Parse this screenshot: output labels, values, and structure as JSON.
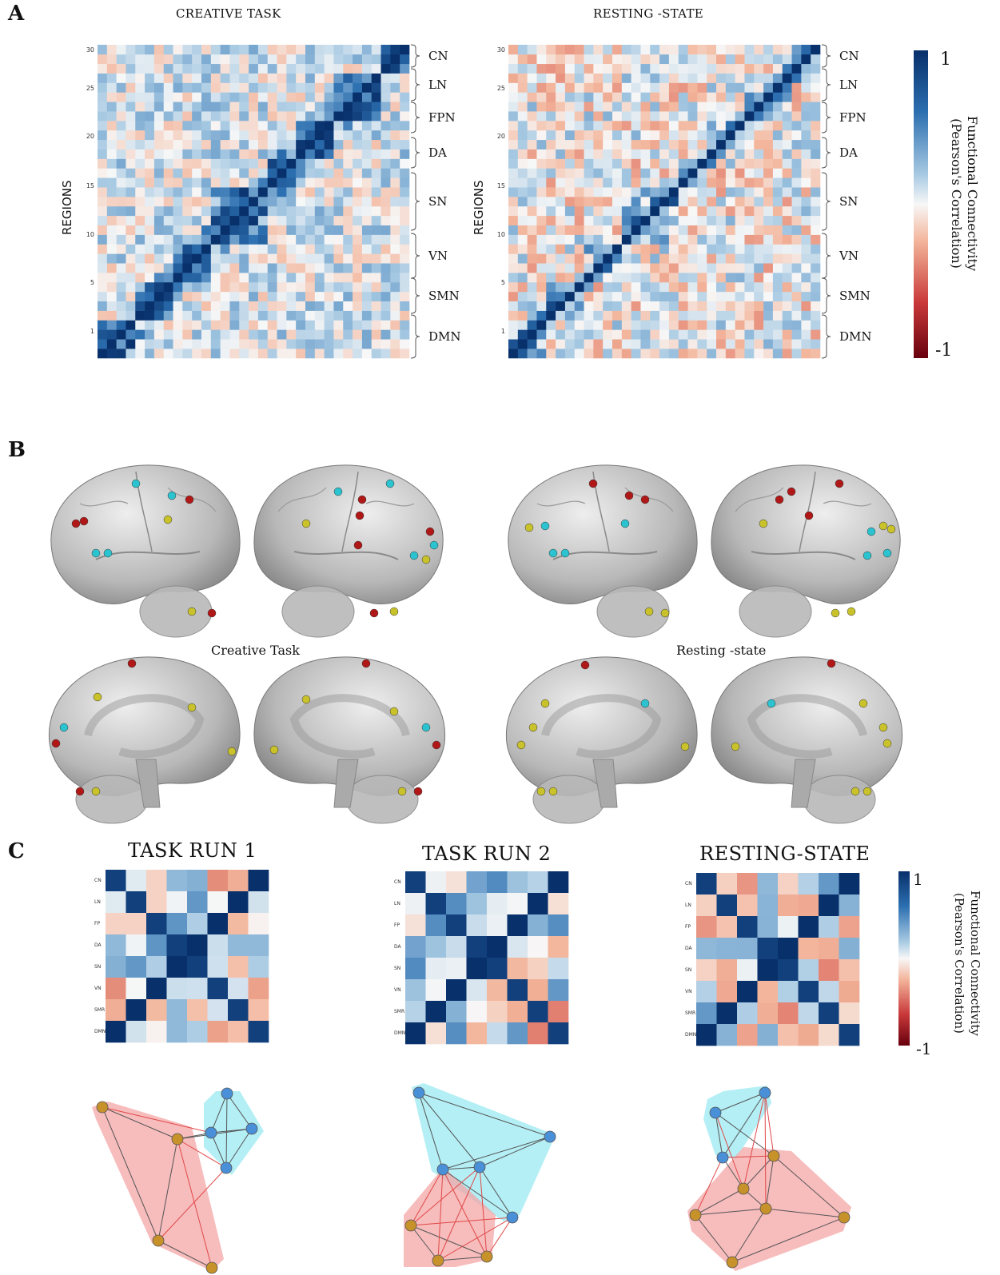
{
  "panel_a": {
    "letter": "A",
    "left_title": "CREATIVE TASK",
    "right_title": "RESTING -STATE",
    "ylabel": "REGIONS",
    "yticks": [
      "30",
      "25",
      "20",
      "15",
      "10",
      "5",
      "1"
    ],
    "networks": [
      "CN",
      "LN",
      "FPN",
      "DA",
      "SN",
      "VN",
      "SMN",
      "DMN"
    ],
    "colorbar": {
      "max": "1",
      "min": "-1",
      "title_line1": "Functional Connectivity",
      "title_line2": "(Pearson's Correlation)"
    }
  },
  "panel_b": {
    "letter": "B",
    "left_label": "Creative Task",
    "right_label": "Resting -state"
  },
  "panel_c": {
    "letter": "C",
    "titles": [
      "TASK RUN 1",
      "TASK RUN 2",
      "RESTING-STATE"
    ],
    "row_labels": [
      "CN",
      "LN",
      "FP",
      "DA",
      "SN",
      "VN",
      "SMR",
      "DMN"
    ],
    "colorbar": {
      "max": "1",
      "min": "-1",
      "title_line1": "Functional Connectivity",
      "title_line2": "(Pearson's Correlation)"
    }
  },
  "colors": {
    "pos": "#08306b",
    "neg": "#67000d",
    "mid": "#f7f7f7",
    "blue_hull": "#9beaf2",
    "red_hull": "#f4a6a6",
    "node": "#c8922a",
    "node_blue": "#4a90d9"
  }
}
